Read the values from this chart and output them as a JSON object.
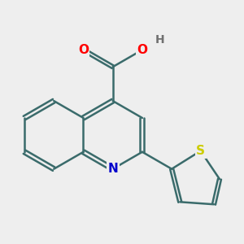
{
  "background_color": "#eeeeee",
  "bond_color": "#3a6b6b",
  "bond_width": 1.8,
  "atom_colors": {
    "O": "#ff0000",
    "N": "#0000cc",
    "S": "#cccc00",
    "C": "#3a6b6b",
    "H": "#707070"
  },
  "font_size": 11,
  "title": ""
}
